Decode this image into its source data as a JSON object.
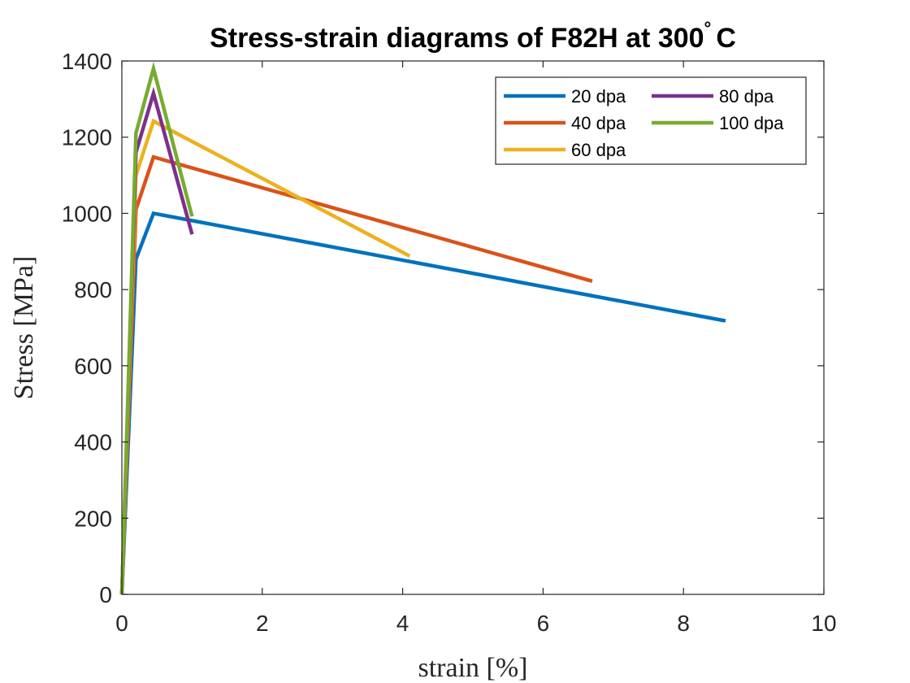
{
  "chart_data": {
    "type": "line",
    "title": "Stress-strain diagrams of F82H at 300",
    "title_degree": "°",
    "title_unit": "C",
    "xlabel": "strain [%]",
    "ylabel": "Stress [MPa]",
    "xlim": [
      0,
      10
    ],
    "ylim": [
      0,
      1400
    ],
    "xticks": [
      0,
      2,
      4,
      6,
      8,
      10
    ],
    "yticks": [
      0,
      200,
      400,
      600,
      800,
      1000,
      1200,
      1400
    ],
    "grid": false,
    "legend_position": "top-right",
    "legend_columns": 2,
    "series": [
      {
        "name": "20 dpa",
        "color": "#0072BD",
        "x": [
          0,
          0.2,
          0.45,
          8.6
        ],
        "y": [
          0,
          880,
          1000,
          718
        ]
      },
      {
        "name": "40 dpa",
        "color": "#D95319",
        "x": [
          0,
          0.2,
          0.45,
          6.7
        ],
        "y": [
          0,
          1010,
          1148,
          822
        ]
      },
      {
        "name": "60 dpa",
        "color": "#EDB120",
        "x": [
          0,
          0.2,
          0.45,
          4.1
        ],
        "y": [
          0,
          1100,
          1242,
          888
        ]
      },
      {
        "name": "80 dpa",
        "color": "#7E2F8E",
        "x": [
          0,
          0.2,
          0.45,
          1.0
        ],
        "y": [
          0,
          1160,
          1315,
          945
        ]
      },
      {
        "name": "100 dpa",
        "color": "#77AC30",
        "x": [
          0,
          0.2,
          0.45,
          1.0
        ],
        "y": [
          0,
          1210,
          1380,
          992
        ]
      }
    ]
  }
}
